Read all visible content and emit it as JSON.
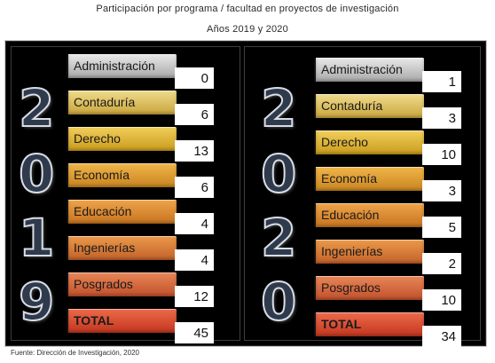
{
  "title_line1": "Participación por programa / facultad en proyectos de investigación",
  "title_line2": "Años 2019 y 2020",
  "colors": {
    "administracion": [
      "#e9e9e9",
      "#a8a8a8"
    ],
    "contaduria": [
      "#f0dc8c",
      "#c9a43c"
    ],
    "derecho": [
      "#f2cf5c",
      "#c99b1c"
    ],
    "economia": [
      "#f0b64a",
      "#c98420"
    ],
    "educacion": [
      "#eea44a",
      "#c7731f"
    ],
    "ingenierias": [
      "#eb9a4a",
      "#c2612a"
    ],
    "posgrados": [
      "#e98656",
      "#c0502c"
    ],
    "total": [
      "#ee6a4a",
      "#c2361f"
    ]
  },
  "left": {
    "year_digits": [
      "2",
      "0",
      "1",
      "9"
    ],
    "rows": [
      {
        "label": "Administración",
        "value": "0"
      },
      {
        "label": "Contaduría",
        "value": "6"
      },
      {
        "label": "Derecho",
        "value": "13"
      },
      {
        "label": "Economía",
        "value": "6"
      },
      {
        "label": "Educación",
        "value": "4"
      },
      {
        "label": "Ingenierías",
        "value": "4"
      },
      {
        "label": "Posgrados",
        "value": "12"
      },
      {
        "label": "TOTAL",
        "value": "45"
      }
    ]
  },
  "right": {
    "year_digits": [
      "2",
      "0",
      "2",
      "0"
    ],
    "rows": [
      {
        "label": "Administración",
        "value": "1"
      },
      {
        "label": "Contaduría",
        "value": "3"
      },
      {
        "label": "Derecho",
        "value": "10"
      },
      {
        "label": "Economía",
        "value": "3"
      },
      {
        "label": "Educación",
        "value": "5"
      },
      {
        "label": "Ingenierías",
        "value": "2"
      },
      {
        "label": "Posgrados",
        "value": "10"
      },
      {
        "label": "TOTAL",
        "value": "34"
      }
    ]
  },
  "source": "Fuente: Dirección de Investigación, 2020"
}
